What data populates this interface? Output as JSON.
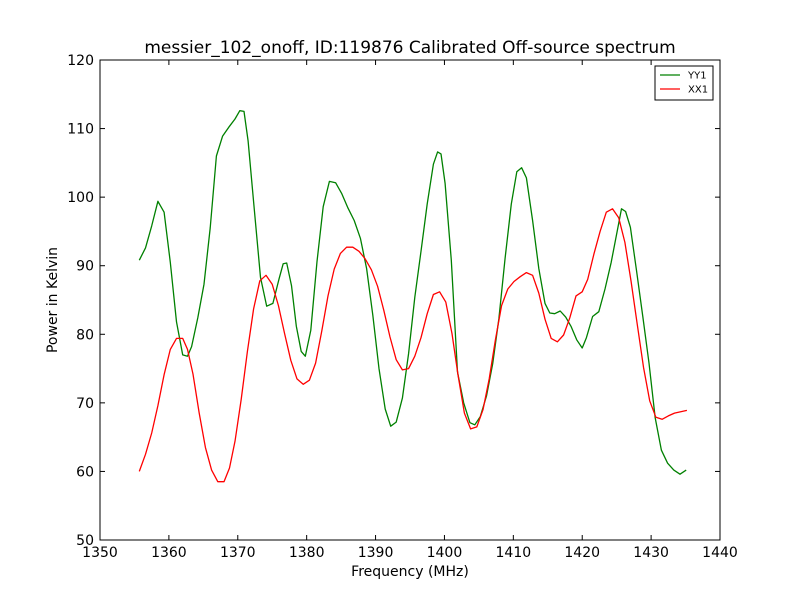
{
  "chart_data": {
    "type": "line",
    "title": "messier_102_onoff, ID:119876 Calibrated Off-source spectrum",
    "xlabel": "Frequency (MHz)",
    "ylabel": "Power in Kelvin",
    "xlim": [
      1350,
      1440
    ],
    "ylim": [
      50,
      120
    ],
    "xticks": [
      1350,
      1360,
      1370,
      1380,
      1390,
      1400,
      1410,
      1420,
      1430,
      1440
    ],
    "yticks": [
      50,
      60,
      70,
      80,
      90,
      100,
      110,
      120
    ],
    "grid": false,
    "legend": "top-right",
    "series": [
      {
        "name": "YY1",
        "color": "#008000",
        "x": [
          1355.7,
          1356.6,
          1357.5,
          1358.4,
          1359.3,
          1360.2,
          1361.1,
          1362.0,
          1362.7,
          1363.3,
          1364.2,
          1365.1,
          1366.0,
          1366.9,
          1367.8,
          1368.7,
          1369.6,
          1370.3,
          1370.9,
          1371.5,
          1372.4,
          1373.3,
          1374.2,
          1375.1,
          1376.0,
          1376.6,
          1377.1,
          1377.8,
          1378.5,
          1379.2,
          1379.8,
          1380.6,
          1381.5,
          1382.4,
          1383.3,
          1384.2,
          1385.1,
          1386.0,
          1386.9,
          1387.8,
          1388.7,
          1389.6,
          1390.5,
          1391.4,
          1392.2,
          1393.0,
          1393.9,
          1394.8,
          1395.7,
          1396.6,
          1397.5,
          1398.4,
          1399.0,
          1399.5,
          1400.1,
          1401.0,
          1401.9,
          1402.8,
          1403.7,
          1404.4,
          1405.2,
          1406.1,
          1407.0,
          1407.9,
          1408.8,
          1409.7,
          1410.5,
          1411.2,
          1411.9,
          1412.8,
          1413.7,
          1414.6,
          1415.3,
          1416.0,
          1416.8,
          1417.6,
          1418.4,
          1419.2,
          1420.0,
          1420.6,
          1421.5,
          1422.4,
          1423.3,
          1424.2,
          1425.1,
          1425.7,
          1426.3,
          1427.0,
          1427.9,
          1428.8,
          1429.7,
          1430.6,
          1431.5,
          1432.4,
          1433.3,
          1434.2,
          1435.1
        ],
        "values": [
          90.8,
          92.6,
          95.8,
          99.4,
          97.8,
          90.5,
          81.8,
          77.0,
          76.8,
          78.2,
          82.4,
          87.3,
          95.5,
          106.0,
          108.9,
          110.2,
          111.4,
          112.6,
          112.5,
          108.2,
          98.2,
          88.3,
          84.1,
          84.5,
          88.1,
          90.3,
          90.4,
          87.1,
          81.2,
          77.5,
          76.8,
          80.6,
          90.6,
          98.6,
          102.3,
          102.1,
          100.5,
          98.4,
          96.6,
          94.0,
          89.6,
          82.8,
          75.0,
          69.1,
          66.6,
          67.2,
          70.7,
          77.2,
          85.4,
          92.1,
          99.0,
          104.8,
          106.6,
          106.3,
          102.0,
          90.8,
          74.5,
          70.0,
          67.1,
          66.8,
          68.0,
          71.0,
          75.7,
          82.3,
          91.1,
          99.0,
          103.7,
          104.3,
          102.8,
          96.6,
          89.6,
          84.5,
          83.1,
          83.0,
          83.4,
          82.5,
          81.1,
          79.2,
          78.0,
          79.5,
          82.6,
          83.3,
          86.6,
          90.5,
          95.2,
          98.3,
          97.9,
          95.6,
          89.2,
          82.6,
          75.8,
          67.8,
          63.1,
          61.2,
          60.2,
          59.6,
          60.2
        ]
      },
      {
        "name": "XX1",
        "color": "#ff0000",
        "x": [
          1355.7,
          1356.6,
          1357.5,
          1358.4,
          1359.3,
          1360.2,
          1361.1,
          1362.0,
          1362.7,
          1363.5,
          1364.4,
          1365.3,
          1366.2,
          1367.1,
          1368.0,
          1368.8,
          1369.6,
          1370.5,
          1371.4,
          1372.3,
          1373.2,
          1374.1,
          1375.0,
          1375.9,
          1376.8,
          1377.7,
          1378.6,
          1379.5,
          1380.4,
          1381.3,
          1382.2,
          1383.1,
          1384.0,
          1384.9,
          1385.8,
          1386.7,
          1387.6,
          1388.5,
          1389.4,
          1390.3,
          1391.2,
          1392.1,
          1393.0,
          1393.9,
          1394.8,
          1395.7,
          1396.6,
          1397.5,
          1398.4,
          1399.3,
          1400.2,
          1401.1,
          1402.0,
          1402.9,
          1403.8,
          1404.7,
          1405.6,
          1406.5,
          1407.4,
          1408.3,
          1409.2,
          1410.1,
          1411.0,
          1411.9,
          1412.8,
          1413.7,
          1414.6,
          1415.5,
          1416.4,
          1417.3,
          1418.2,
          1419.1,
          1420.0,
          1420.8,
          1421.7,
          1422.6,
          1423.5,
          1424.4,
          1425.3,
          1426.2,
          1427.1,
          1428.0,
          1428.9,
          1429.8,
          1430.7,
          1431.6,
          1432.5,
          1433.4,
          1434.3,
          1435.2
        ],
        "values": [
          60.0,
          62.5,
          65.6,
          69.6,
          74.1,
          77.8,
          79.4,
          79.4,
          77.8,
          74.2,
          68.5,
          63.5,
          60.2,
          58.5,
          58.5,
          60.5,
          64.4,
          70.5,
          77.5,
          83.7,
          87.8,
          88.6,
          87.3,
          84.2,
          80.1,
          76.2,
          73.5,
          72.7,
          73.3,
          75.8,
          80.5,
          85.6,
          89.5,
          91.8,
          92.7,
          92.7,
          92.1,
          91.0,
          89.4,
          87.0,
          83.5,
          79.6,
          76.3,
          74.8,
          75.0,
          76.8,
          79.5,
          83.0,
          85.8,
          86.2,
          84.7,
          80.1,
          73.9,
          68.5,
          66.2,
          66.5,
          69.0,
          73.5,
          79.2,
          84.2,
          86.6,
          87.7,
          88.4,
          89.0,
          88.6,
          86.0,
          82.2,
          79.4,
          78.9,
          79.9,
          82.4,
          85.6,
          86.2,
          88.0,
          91.7,
          95.0,
          97.8,
          98.3,
          97.0,
          93.4,
          87.7,
          81.4,
          75.2,
          70.3,
          67.9,
          67.6,
          68.1,
          68.5,
          68.7,
          68.9
        ]
      }
    ]
  }
}
